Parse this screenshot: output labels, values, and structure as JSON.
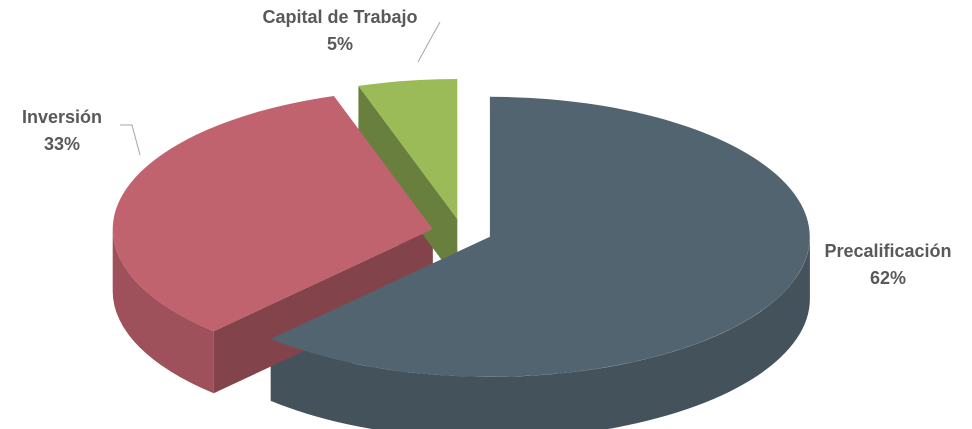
{
  "chart_data": {
    "type": "pie3d",
    "categories": [
      "Precalificación",
      "Inversión",
      "Capital de Trabajo"
    ],
    "values": [
      62,
      33,
      5
    ],
    "value_labels": [
      "62%",
      "33%",
      "5%"
    ],
    "colors": [
      "#52646f",
      "#c1636f",
      "#9bbb59"
    ]
  }
}
